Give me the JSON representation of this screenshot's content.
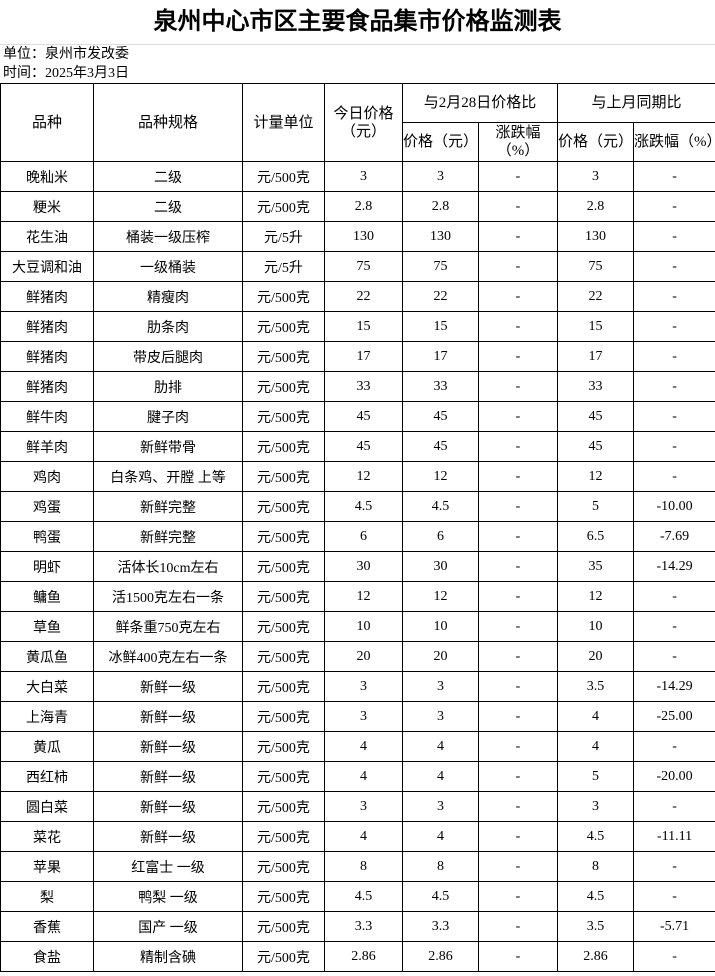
{
  "title": "泉州中心市区主要食品集市价格监测表",
  "unit_line": "单位：泉州市发改委",
  "date_line": "时间：2025年3月3日",
  "headers": {
    "variety": "品种",
    "spec": "品种规格",
    "unit": "计量单位",
    "today": "今日价格（元）",
    "group1": "与2月28日价格比",
    "group2": "与上月同期比",
    "price": "价格（元）",
    "change": "涨跌幅（%）"
  },
  "rows": [
    [
      "晚籼米",
      "二级",
      "元/500克",
      "3",
      "3",
      "-",
      "3",
      "-"
    ],
    [
      "粳米",
      "二级",
      "元/500克",
      "2.8",
      "2.8",
      "-",
      "2.8",
      "-"
    ],
    [
      "花生油",
      "桶装一级压榨",
      "元/5升",
      "130",
      "130",
      "-",
      "130",
      "-"
    ],
    [
      "大豆调和油",
      "一级桶装",
      "元/5升",
      "75",
      "75",
      "-",
      "75",
      "-"
    ],
    [
      "鲜猪肉",
      "精瘦肉",
      "元/500克",
      "22",
      "22",
      "-",
      "22",
      "-"
    ],
    [
      "鲜猪肉",
      "肋条肉",
      "元/500克",
      "15",
      "15",
      "-",
      "15",
      "-"
    ],
    [
      "鲜猪肉",
      "带皮后腿肉",
      "元/500克",
      "17",
      "17",
      "-",
      "17",
      "-"
    ],
    [
      "鲜猪肉",
      "肋排",
      "元/500克",
      "33",
      "33",
      "-",
      "33",
      "-"
    ],
    [
      "鲜牛肉",
      "腱子肉",
      "元/500克",
      "45",
      "45",
      "-",
      "45",
      "-"
    ],
    [
      "鲜羊肉",
      "新鲜带骨",
      "元/500克",
      "45",
      "45",
      "-",
      "45",
      "-"
    ],
    [
      "鸡肉",
      "白条鸡、开膛 上等",
      "元/500克",
      "12",
      "12",
      "-",
      "12",
      "-"
    ],
    [
      "鸡蛋",
      "新鲜完整",
      "元/500克",
      "4.5",
      "4.5",
      "-",
      "5",
      "-10.00"
    ],
    [
      "鸭蛋",
      "新鲜完整",
      "元/500克",
      "6",
      "6",
      "-",
      "6.5",
      "-7.69"
    ],
    [
      "明虾",
      "活体长10cm左右",
      "元/500克",
      "30",
      "30",
      "-",
      "35",
      "-14.29"
    ],
    [
      "鳙鱼",
      "活1500克左右一条",
      "元/500克",
      "12",
      "12",
      "-",
      "12",
      "-"
    ],
    [
      "草鱼",
      "鲜条重750克左右",
      "元/500克",
      "10",
      "10",
      "-",
      "10",
      "-"
    ],
    [
      "黄瓜鱼",
      "冰鲜400克左右一条",
      "元/500克",
      "20",
      "20",
      "-",
      "20",
      "-"
    ],
    [
      "大白菜",
      "新鲜一级",
      "元/500克",
      "3",
      "3",
      "-",
      "3.5",
      "-14.29"
    ],
    [
      "上海青",
      "新鲜一级",
      "元/500克",
      "3",
      "3",
      "-",
      "4",
      "-25.00"
    ],
    [
      "黄瓜",
      "新鲜一级",
      "元/500克",
      "4",
      "4",
      "-",
      "4",
      "-"
    ],
    [
      "西红柿",
      "新鲜一级",
      "元/500克",
      "4",
      "4",
      "-",
      "5",
      "-20.00"
    ],
    [
      "圆白菜",
      "新鲜一级",
      "元/500克",
      "3",
      "3",
      "-",
      "3",
      "-"
    ],
    [
      "菜花",
      "新鲜一级",
      "元/500克",
      "4",
      "4",
      "-",
      "4.5",
      "-11.11"
    ],
    [
      "苹果",
      "红富士 一级",
      "元/500克",
      "8",
      "8",
      "-",
      "8",
      "-"
    ],
    [
      "梨",
      "鸭梨 一级",
      "元/500克",
      "4.5",
      "4.5",
      "-",
      "4.5",
      "-"
    ],
    [
      "香蕉",
      "国产 一级",
      "元/500克",
      "3.3",
      "3.3",
      "-",
      "3.5",
      "-5.71"
    ],
    [
      "食盐",
      "精制含碘",
      "元/500克",
      "2.86",
      "2.86",
      "-",
      "2.86",
      "-"
    ]
  ]
}
